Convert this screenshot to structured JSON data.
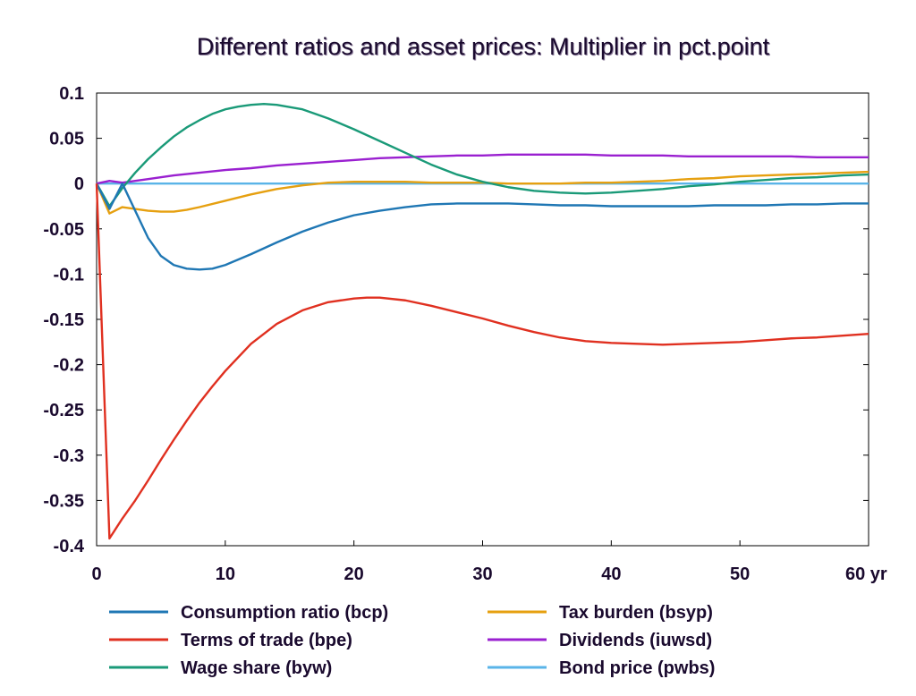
{
  "chart_data": {
    "type": "line",
    "title": "Different ratios and asset prices: Multiplier in pct.point",
    "xlabel": "",
    "ylabel": "",
    "xlim": [
      0,
      60
    ],
    "ylim": [
      -0.4,
      0.1
    ],
    "x_ticks": [
      0,
      10,
      20,
      30,
      40,
      50,
      60
    ],
    "x_tick_labels": [
      "0",
      "10",
      "20",
      "30",
      "40",
      "50",
      "60 yr"
    ],
    "y_ticks": [
      0.1,
      0.05,
      0,
      -0.05,
      -0.1,
      -0.15,
      -0.2,
      -0.25,
      -0.3,
      -0.35,
      -0.4
    ],
    "y_tick_labels": [
      "0.1",
      "0.05",
      "0",
      "-0.05",
      "-0.1",
      "-0.15",
      "-0.2",
      "-0.25",
      "-0.3",
      "-0.35",
      "-0.4"
    ],
    "grid": false,
    "legend_position": "bottom",
    "series": [
      {
        "name": "Consumption ratio (bcp)",
        "color": "#1f77b4",
        "points": [
          [
            0,
            0
          ],
          [
            1,
            -0.028
          ],
          [
            2,
            0.0
          ],
          [
            3,
            -0.03
          ],
          [
            4,
            -0.06
          ],
          [
            5,
            -0.08
          ],
          [
            6,
            -0.09
          ],
          [
            7,
            -0.094
          ],
          [
            8,
            -0.095
          ],
          [
            9,
            -0.094
          ],
          [
            10,
            -0.09
          ],
          [
            12,
            -0.078
          ],
          [
            14,
            -0.065
          ],
          [
            16,
            -0.053
          ],
          [
            18,
            -0.043
          ],
          [
            20,
            -0.035
          ],
          [
            22,
            -0.03
          ],
          [
            24,
            -0.026
          ],
          [
            26,
            -0.023
          ],
          [
            28,
            -0.022
          ],
          [
            30,
            -0.022
          ],
          [
            32,
            -0.022
          ],
          [
            34,
            -0.023
          ],
          [
            36,
            -0.024
          ],
          [
            38,
            -0.024
          ],
          [
            40,
            -0.025
          ],
          [
            42,
            -0.025
          ],
          [
            44,
            -0.025
          ],
          [
            46,
            -0.025
          ],
          [
            48,
            -0.024
          ],
          [
            50,
            -0.024
          ],
          [
            52,
            -0.024
          ],
          [
            54,
            -0.023
          ],
          [
            56,
            -0.023
          ],
          [
            58,
            -0.022
          ],
          [
            60,
            -0.022
          ]
        ]
      },
      {
        "name": "Terms of trade (bpe)",
        "color": "#e03020",
        "points": [
          [
            0,
            0
          ],
          [
            1,
            -0.392
          ],
          [
            2,
            -0.37
          ],
          [
            3,
            -0.35
          ],
          [
            4,
            -0.328
          ],
          [
            5,
            -0.305
          ],
          [
            6,
            -0.283
          ],
          [
            7,
            -0.262
          ],
          [
            8,
            -0.242
          ],
          [
            9,
            -0.224
          ],
          [
            10,
            -0.207
          ],
          [
            12,
            -0.177
          ],
          [
            14,
            -0.155
          ],
          [
            16,
            -0.14
          ],
          [
            18,
            -0.131
          ],
          [
            20,
            -0.127
          ],
          [
            21,
            -0.126
          ],
          [
            22,
            -0.126
          ],
          [
            24,
            -0.129
          ],
          [
            26,
            -0.135
          ],
          [
            28,
            -0.142
          ],
          [
            30,
            -0.149
          ],
          [
            32,
            -0.157
          ],
          [
            34,
            -0.164
          ],
          [
            36,
            -0.17
          ],
          [
            38,
            -0.174
          ],
          [
            40,
            -0.176
          ],
          [
            42,
            -0.177
          ],
          [
            44,
            -0.178
          ],
          [
            46,
            -0.177
          ],
          [
            48,
            -0.176
          ],
          [
            50,
            -0.175
          ],
          [
            52,
            -0.173
          ],
          [
            54,
            -0.171
          ],
          [
            56,
            -0.17
          ],
          [
            58,
            -0.168
          ],
          [
            60,
            -0.166
          ]
        ]
      },
      {
        "name": "Wage share (byw)",
        "color": "#1a9a78",
        "points": [
          [
            0,
            0
          ],
          [
            1,
            -0.025
          ],
          [
            2,
            -0.005
          ],
          [
            3,
            0.012
          ],
          [
            4,
            0.027
          ],
          [
            5,
            0.04
          ],
          [
            6,
            0.052
          ],
          [
            7,
            0.062
          ],
          [
            8,
            0.07
          ],
          [
            9,
            0.077
          ],
          [
            10,
            0.082
          ],
          [
            11,
            0.085
          ],
          [
            12,
            0.087
          ],
          [
            13,
            0.088
          ],
          [
            14,
            0.087
          ],
          [
            16,
            0.082
          ],
          [
            18,
            0.072
          ],
          [
            20,
            0.06
          ],
          [
            22,
            0.047
          ],
          [
            24,
            0.034
          ],
          [
            26,
            0.021
          ],
          [
            28,
            0.01
          ],
          [
            30,
            0.002
          ],
          [
            32,
            -0.004
          ],
          [
            34,
            -0.008
          ],
          [
            36,
            -0.01
          ],
          [
            38,
            -0.011
          ],
          [
            40,
            -0.01
          ],
          [
            42,
            -0.008
          ],
          [
            44,
            -0.006
          ],
          [
            46,
            -0.003
          ],
          [
            48,
            -0.001
          ],
          [
            50,
            0.002
          ],
          [
            52,
            0.004
          ],
          [
            54,
            0.006
          ],
          [
            56,
            0.007
          ],
          [
            58,
            0.009
          ],
          [
            60,
            0.01
          ]
        ]
      },
      {
        "name": "Tax burden (bsyp)",
        "color": "#e6a010",
        "points": [
          [
            0,
            0
          ],
          [
            1,
            -0.033
          ],
          [
            2,
            -0.026
          ],
          [
            3,
            -0.028
          ],
          [
            4,
            -0.03
          ],
          [
            5,
            -0.031
          ],
          [
            6,
            -0.031
          ],
          [
            7,
            -0.029
          ],
          [
            8,
            -0.026
          ],
          [
            10,
            -0.019
          ],
          [
            12,
            -0.012
          ],
          [
            14,
            -0.006
          ],
          [
            16,
            -0.002
          ],
          [
            18,
            0.001
          ],
          [
            20,
            0.002
          ],
          [
            22,
            0.002
          ],
          [
            24,
            0.002
          ],
          [
            26,
            0.001
          ],
          [
            28,
            0.001
          ],
          [
            30,
            0.001
          ],
          [
            32,
            0.0
          ],
          [
            34,
            0.0
          ],
          [
            36,
            0.0
          ],
          [
            38,
            0.001
          ],
          [
            40,
            0.001
          ],
          [
            42,
            0.002
          ],
          [
            44,
            0.003
          ],
          [
            46,
            0.005
          ],
          [
            48,
            0.006
          ],
          [
            50,
            0.008
          ],
          [
            52,
            0.009
          ],
          [
            54,
            0.01
          ],
          [
            56,
            0.011
          ],
          [
            58,
            0.012
          ],
          [
            60,
            0.013
          ]
        ]
      },
      {
        "name": "Dividends (iuwsd)",
        "color": "#9a20d0",
        "points": [
          [
            0,
            0
          ],
          [
            1,
            0.003
          ],
          [
            2,
            0.001
          ],
          [
            3,
            0.003
          ],
          [
            4,
            0.005
          ],
          [
            6,
            0.009
          ],
          [
            8,
            0.012
          ],
          [
            10,
            0.015
          ],
          [
            12,
            0.017
          ],
          [
            14,
            0.02
          ],
          [
            16,
            0.022
          ],
          [
            18,
            0.024
          ],
          [
            20,
            0.026
          ],
          [
            22,
            0.028
          ],
          [
            24,
            0.029
          ],
          [
            26,
            0.03
          ],
          [
            28,
            0.031
          ],
          [
            30,
            0.031
          ],
          [
            32,
            0.032
          ],
          [
            34,
            0.032
          ],
          [
            36,
            0.032
          ],
          [
            38,
            0.032
          ],
          [
            40,
            0.031
          ],
          [
            42,
            0.031
          ],
          [
            44,
            0.031
          ],
          [
            46,
            0.03
          ],
          [
            48,
            0.03
          ],
          [
            50,
            0.03
          ],
          [
            52,
            0.03
          ],
          [
            54,
            0.03
          ],
          [
            56,
            0.029
          ],
          [
            58,
            0.029
          ],
          [
            60,
            0.029
          ]
        ]
      },
      {
        "name": "Bond price (pwbs)",
        "color": "#5ab4e8",
        "points": [
          [
            0,
            0
          ],
          [
            60,
            0
          ]
        ]
      }
    ]
  }
}
